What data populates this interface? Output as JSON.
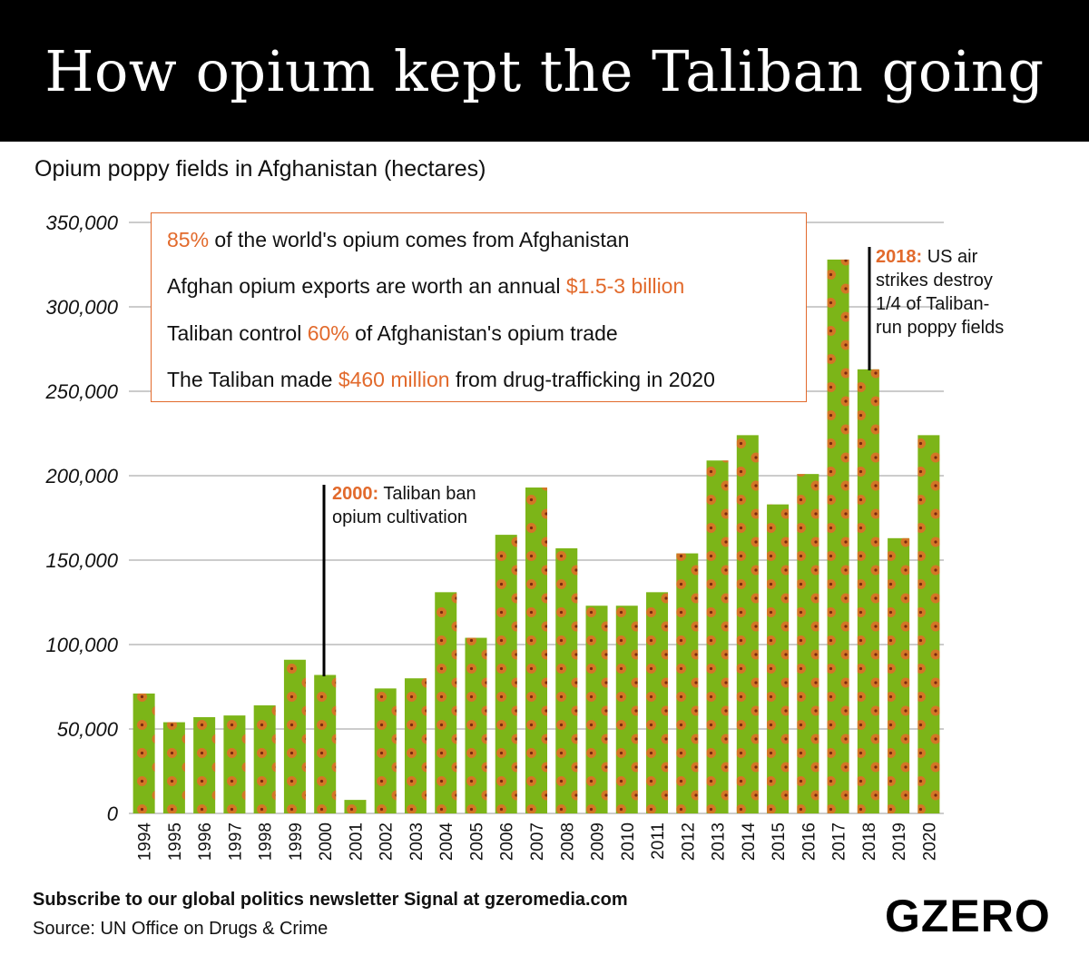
{
  "header": {
    "title": "How opium kept the Taliban going"
  },
  "chart_data": {
    "type": "bar",
    "title": "Opium poppy fields in Afghanistan (hectares)",
    "categories": [
      "1994",
      "1995",
      "1996",
      "1997",
      "1998",
      "1999",
      "2000",
      "2001",
      "2002",
      "2003",
      "2004",
      "2005",
      "2006",
      "2007",
      "2008",
      "2009",
      "2010",
      "2011",
      "2012",
      "2013",
      "2014",
      "2015",
      "2016",
      "2017",
      "2018",
      "2019",
      "2020"
    ],
    "values": [
      71000,
      54000,
      57000,
      58000,
      64000,
      91000,
      82000,
      8000,
      74000,
      80000,
      131000,
      104000,
      165000,
      193000,
      157000,
      123000,
      123000,
      131000,
      154000,
      209000,
      224000,
      183000,
      201000,
      328000,
      263000,
      163000,
      224000
    ],
    "ylim": [
      0,
      350000
    ],
    "yticks": [
      0,
      50000,
      100000,
      150000,
      200000,
      250000,
      300000,
      350000
    ],
    "ytick_labels": [
      "0",
      "50,000",
      "100,000",
      "150,000",
      "200,000",
      "250,000",
      "300,000",
      "350,000"
    ],
    "grid": true,
    "colors": {
      "bar": "#7cb518",
      "dot": "#f0612a",
      "grid": "#999999",
      "accent": "#e26a2c"
    }
  },
  "facts": {
    "f1": {
      "hl": "85%",
      "text": " of the world's opium comes from Afghanistan"
    },
    "f2": {
      "text": "Afghan opium exports are worth an annual ",
      "hl": "$1.5-3 billion"
    },
    "f3": {
      "pre": "Taliban control ",
      "hl": "60%",
      "post": " of Afghanistan's opium trade"
    },
    "f4": {
      "pre": "The Taliban made ",
      "hl": "$460 million",
      "post": " from drug-trafficking in 2020"
    }
  },
  "annotations": {
    "a2000": {
      "year": "2000:",
      "line1": " Taliban ban",
      "line2": "opium cultivation"
    },
    "a2018": {
      "year": "2018:",
      "line1": " US air",
      "line2": "strikes destroy",
      "line3": "1/4 of Taliban-",
      "line4": "run poppy fields"
    }
  },
  "footer": {
    "subscribe": "Subscribe to our global politics newsletter Signal at gzeromedia.com",
    "source": "Source: UN Office on Drugs & Crime",
    "logo": "GZERO"
  }
}
